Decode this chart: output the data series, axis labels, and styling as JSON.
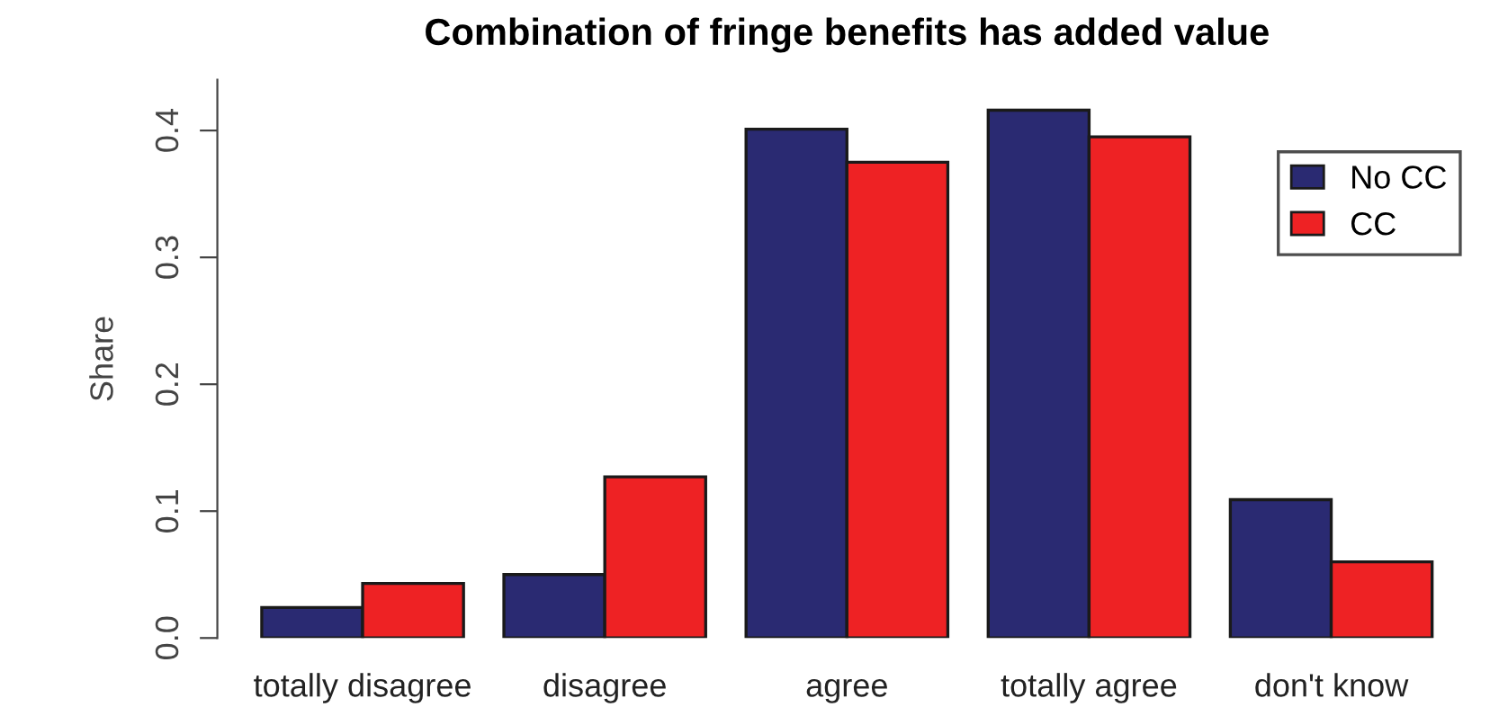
{
  "chart_data": {
    "type": "bar",
    "title": "Combination of fringe benefits has added value",
    "ylabel": "Share",
    "categories": [
      "totally disagree",
      "disagree",
      "agree",
      "totally agree",
      "don't know"
    ],
    "series": [
      {
        "name": "No CC",
        "color": "#2a2a72",
        "values": [
          0.024,
          0.05,
          0.401,
          0.416,
          0.109
        ]
      },
      {
        "name": "CC",
        "color": "#ee2224",
        "values": [
          0.043,
          0.127,
          0.375,
          0.395,
          0.06
        ]
      }
    ],
    "ylim": [
      0,
      0.44
    ],
    "yticks": [
      {
        "value": 0,
        "label": "0.0"
      },
      0.1,
      0.2,
      0.3,
      0.4
    ],
    "grid": false,
    "legend": "top right"
  }
}
